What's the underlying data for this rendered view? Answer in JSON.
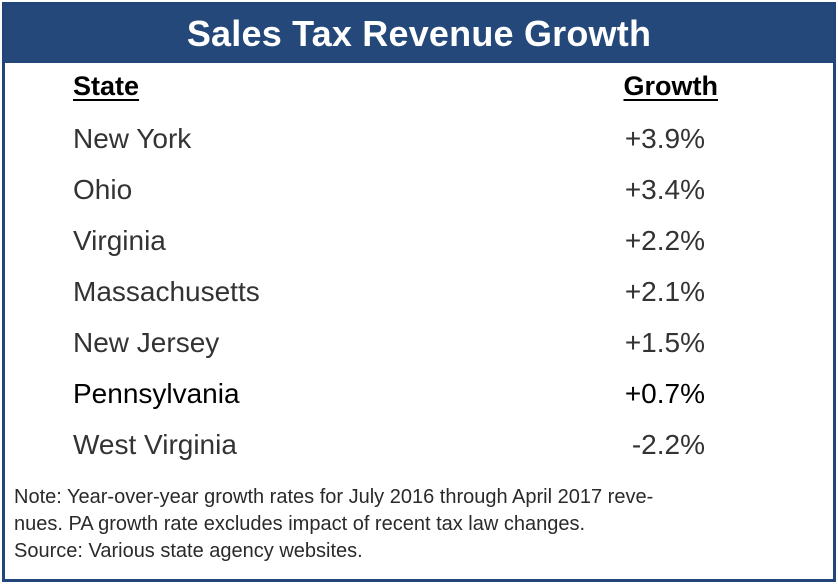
{
  "header": {
    "title": "Sales Tax Revenue Growth"
  },
  "columns": {
    "state": "State",
    "growth": "Growth"
  },
  "rows": [
    {
      "state": "New York",
      "growth": "+3.9%"
    },
    {
      "state": "Ohio",
      "growth": "+3.4%"
    },
    {
      "state": "Virginia",
      "growth": "+2.2%"
    },
    {
      "state": "Massachusetts",
      "growth": "+2.1%"
    },
    {
      "state": "New Jersey",
      "growth": "+1.5%"
    },
    {
      "state": "Pennsylvania",
      "growth": "+0.7%"
    },
    {
      "state": "West Virginia",
      "growth": "-2.2%"
    }
  ],
  "notes": {
    "note_line1": "Note: Year-over-year growth rates for July 2016 through April 2017 reve-",
    "note_line2": "nues. PA growth rate excludes impact of recent tax law changes.",
    "source": "Source: Various state agency websites."
  },
  "colors": {
    "header_background": "#234879",
    "header_text": "#ffffff",
    "border": "#22457a"
  },
  "chart_data": {
    "type": "table",
    "title": "Sales Tax Revenue Growth",
    "columns": [
      "State",
      "Growth"
    ],
    "categories": [
      "New York",
      "Ohio",
      "Virginia",
      "Massachusetts",
      "New Jersey",
      "Pennsylvania",
      "West Virginia"
    ],
    "values": [
      3.9,
      3.4,
      2.2,
      2.1,
      1.5,
      0.7,
      -2.2
    ],
    "unit": "%"
  }
}
